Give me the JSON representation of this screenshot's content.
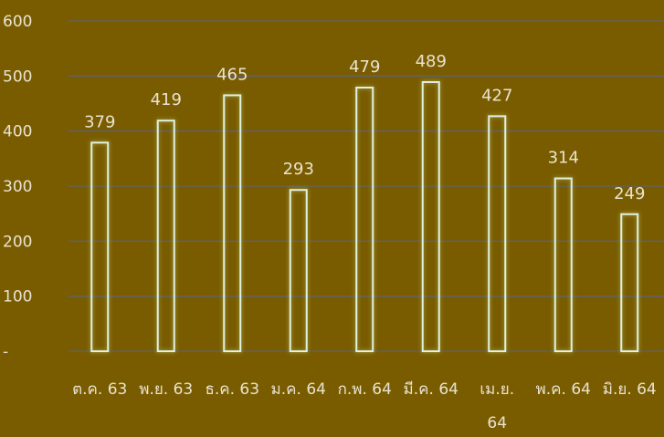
{
  "chart_data": {
    "type": "bar",
    "title": "",
    "xlabel": "",
    "ylabel": "",
    "categories": [
      "ต.ค. 63",
      "พ.ย. 63",
      "ธ.ค. 63",
      "ม.ค. 64",
      "ก.พ. 64",
      "มี.ค. 64",
      "เม.ย. 64",
      "พ.ค. 64",
      "มิ.ย. 64"
    ],
    "values": [
      379,
      419,
      465,
      293,
      479,
      489,
      427,
      314,
      249
    ],
    "ylim": [
      0,
      600
    ],
    "yticks": [
      0,
      100,
      200,
      300,
      400,
      500,
      600
    ],
    "ytick_labels": [
      "-",
      "100",
      "200",
      "300",
      "400",
      "500",
      "600"
    ],
    "data_labels": [
      "379",
      "419",
      "465",
      "293",
      "479",
      "489",
      "427",
      "314",
      "249"
    ],
    "grid": true,
    "legend": "none",
    "colors": {
      "background": "#7a5c00",
      "bar_outline": "#e2f0e0",
      "gridline": "#5e6270",
      "text": "#e8e3d0"
    }
  }
}
